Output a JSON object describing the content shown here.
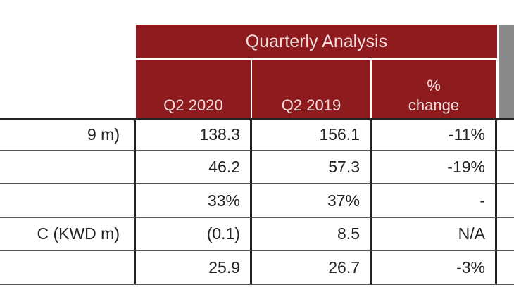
{
  "header": {
    "title": "Quarterly Analysis",
    "columns": [
      "Q2 2020",
      "Q2 2019",
      "% change"
    ]
  },
  "table": {
    "rows": [
      {
        "label": "9 m)",
        "cells": [
          "138.3",
          "156.1",
          "-11%"
        ]
      },
      {
        "cells": [
          "46.2",
          "57.3",
          "-19%"
        ]
      },
      {
        "cells": [
          "33%",
          "37%",
          "-"
        ]
      },
      {
        "label": "C (KWD m)",
        "cells": [
          "(0.1)",
          "8.5",
          "N/A"
        ]
      },
      {
        "cells": [
          "25.9",
          "26.7",
          "-3%"
        ]
      }
    ]
  }
}
